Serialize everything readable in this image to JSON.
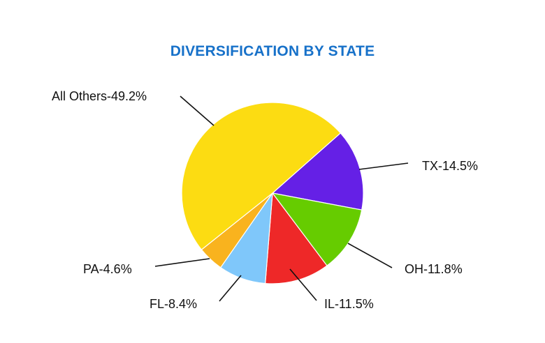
{
  "colors": {
    "title": "#1771c9",
    "slices": [
      "#6520e6",
      "#66cc00",
      "#ee2828",
      "#7fc7fa",
      "#f9b31e",
      "#fcdc12"
    ]
  },
  "chart_data": {
    "type": "pie",
    "title": "DIVERSIFICATION BY STATE",
    "slices": [
      {
        "label": "TX",
        "value": 14.5,
        "text": "TX-14.5%"
      },
      {
        "label": "OH",
        "value": 11.8,
        "text": "OH-11.8%"
      },
      {
        "label": "IL",
        "value": 11.5,
        "text": "IL-11.5%"
      },
      {
        "label": "FL",
        "value": 8.4,
        "text": "FL-8.4%"
      },
      {
        "label": "PA",
        "value": 4.6,
        "text": "PA-4.6%"
      },
      {
        "label": "All Others",
        "value": 49.2,
        "text": "All Others-49.2%"
      }
    ]
  }
}
